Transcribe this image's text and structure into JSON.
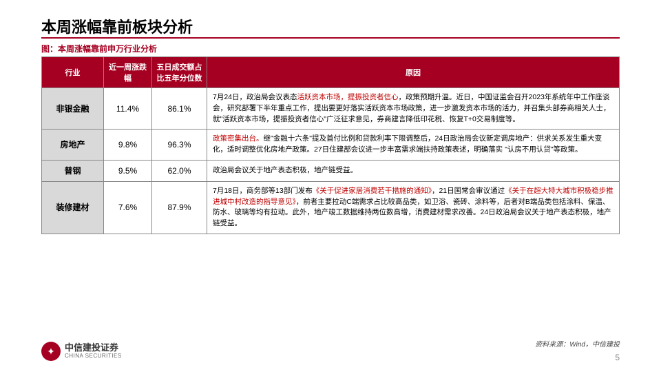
{
  "slide": {
    "title": "本周涨幅靠前板块分析",
    "chart_label": "图：本周涨幅靠前申万行业分析",
    "accent_color": "#a50021",
    "header_bg": "#a50021",
    "header_text_color": "#ffffff",
    "industry_cell_bg": "#d9d9d9",
    "border_color": "#888888",
    "highlight_color": "#c00000",
    "background_color": "#ffffff",
    "title_fontsize": 22,
    "body_fontsize": 11
  },
  "table": {
    "columns": {
      "industry": "行业",
      "change": "近一周涨跌幅",
      "percentile": "五日成交额占比五年分位数",
      "reason": "原因"
    },
    "rows": [
      {
        "industry": "非银金融",
        "change": "11.4%",
        "percentile": "86.1%",
        "reason_pre": "7月24日，政治局会议表态",
        "reason_hl1": "活跃资本市场，提振投资者信心",
        "reason_post": "，政策预期升温。近日，中国证监会召开2023年系统年中工作座谈会，研究部署下半年重点工作，提出要更好落实活跃资本市场政策，进一步激发资本市场的活力，并召集头部券商相关人士，就\"活跃资本市场，提振投资者信心\"广泛征求意见，券商建言降低印花税、恢复T+0交易制度等。"
      },
      {
        "industry": "房地产",
        "change": "9.8%",
        "percentile": "96.3%",
        "reason_hl1": "政策密集出台。",
        "reason_post": "继\"金融十六条\"提及首付比例和贷款利率下限调整后，24日政治局会议新定调房地产：供求关系发生重大变化，适时调整优化房地产政策。27日住建部会议进一步丰富需求端扶持政策表述，明确落实 \"认房不用认贷\"等政策。"
      },
      {
        "industry": "普钢",
        "change": "9.5%",
        "percentile": "62.0%",
        "reason_plain": "政治局会议关于地产表态积极，地产链受益。"
      },
      {
        "industry": "装修建材",
        "change": "7.6%",
        "percentile": "87.9%",
        "reason_pre": "7月18日，商务部等13部门发布",
        "reason_hl1": "《关于促进家居消费若干措施的通知》",
        "reason_mid": "，21日国常会审议通过",
        "reason_hl2": "《关于在超大特大城市积极稳步推进城中村改造的指导意见》",
        "reason_post": "，前者主要拉动C端需求占比较高品类，如卫浴、瓷砖、涂料等，后者对B端品类包括涂料、保温、防水、玻璃等均有拉动。此外，地产竣工数据维持两位数高增，消费建材需求改善。24日政治局会议关于地产表态积极，地产链受益。"
      }
    ]
  },
  "footer": {
    "logo_cn": "中信建投证券",
    "logo_en": "CHINA SECURITIES",
    "logo_glyph": "✦",
    "source": "资料来源：Wind，中信建投",
    "page": "5"
  }
}
